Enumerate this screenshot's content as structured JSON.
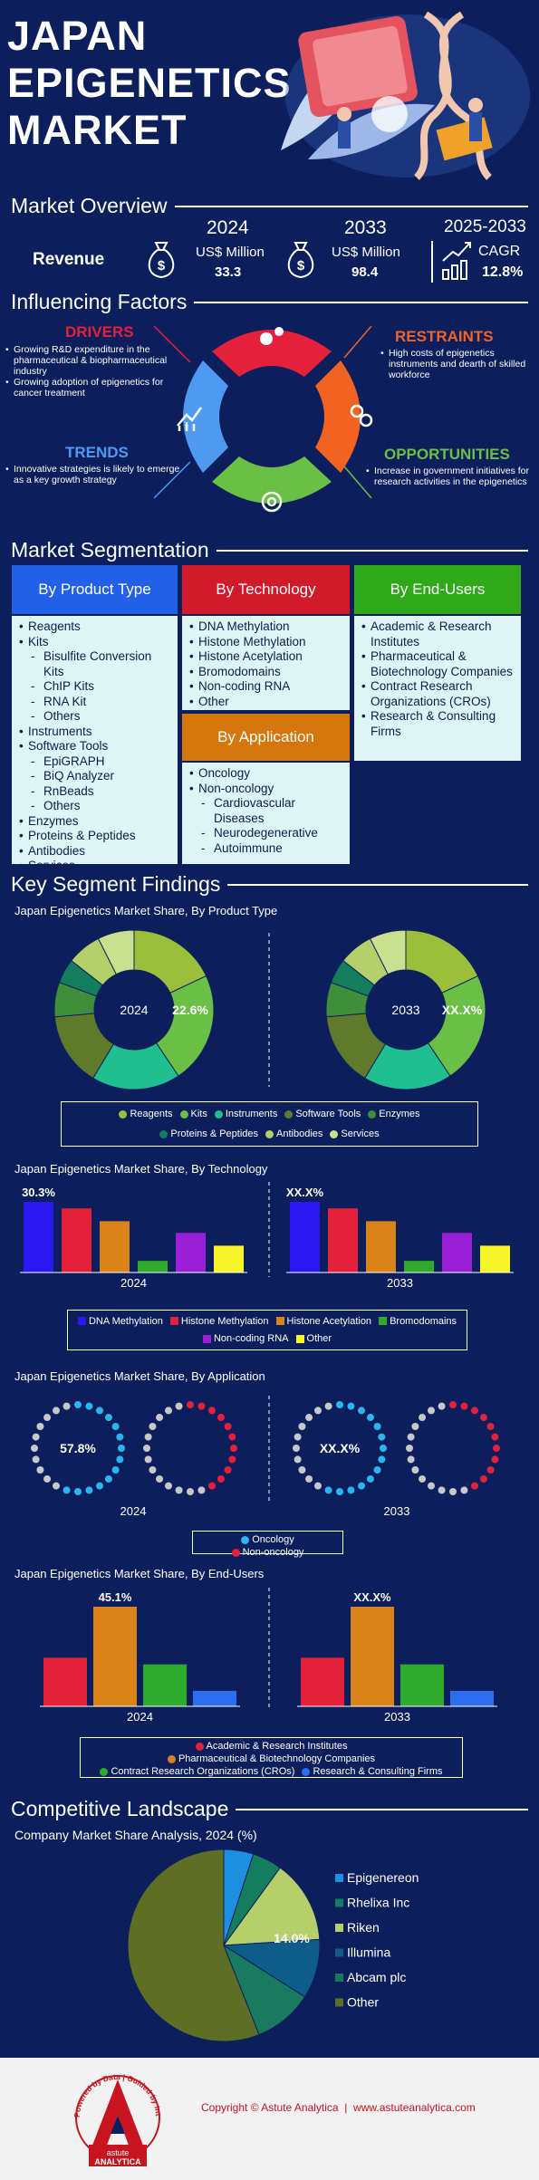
{
  "hero": {
    "title_line1": "JAPAN",
    "title_line2": "EPIGENETICS",
    "title_line3": "MARKET"
  },
  "overview": {
    "title": "Market Overview",
    "revenue_label": "Revenue",
    "y1": "2024",
    "y1_unit": "US$ Million",
    "y1_value": "33.3",
    "y2": "2033",
    "y2_unit": "US$ Million",
    "y2_value": "98.4",
    "y3": "2025-2033",
    "cagr_label": "CAGR",
    "cagr_value": "12.8%"
  },
  "factors": {
    "title": "Influencing Factors",
    "drivers": {
      "label": "DRIVERS",
      "items": [
        "Growing R&D expenditure in the pharmaceutical & biopharmaceutical industry",
        "Growing adoption of epigenetics for cancer treatment"
      ]
    },
    "restraints": {
      "label": "RESTRAINTS",
      "items": [
        "High costs of epigenetics instruments and dearth of skilled workforce"
      ]
    },
    "trends": {
      "label": "TRENDS",
      "items": [
        "Innovative strategies is likely to emerge as a key growth strategy"
      ]
    },
    "opportunities": {
      "label": "OPPORTUNITIES",
      "items": [
        "Increase in government initiatives for research activities in the epigenetics"
      ]
    },
    "colors": {
      "drivers": "#e5203a",
      "restraints": "#f26322",
      "trends": "#4e9af0",
      "opportunities": "#6abf45"
    }
  },
  "segmentation": {
    "title": "Market Segmentation",
    "product": {
      "label": "By Product Type",
      "items": [
        {
          "t": "Reagents",
          "l": 0
        },
        {
          "t": "Kits",
          "l": 0
        },
        {
          "t": "Bisulfite Conversion Kits",
          "l": 1
        },
        {
          "t": "ChIP Kits",
          "l": 1
        },
        {
          "t": "RNA Kit",
          "l": 1
        },
        {
          "t": "Others",
          "l": 1
        },
        {
          "t": "Instruments",
          "l": 0
        },
        {
          "t": "Software Tools",
          "l": 0
        },
        {
          "t": "EpiGRAPH",
          "l": 1
        },
        {
          "t": "BiQ Analyzer",
          "l": 1
        },
        {
          "t": "RnBeads",
          "l": 1
        },
        {
          "t": "Others",
          "l": 1
        },
        {
          "t": "Enzymes",
          "l": 0
        },
        {
          "t": "Proteins & Peptides",
          "l": 0
        },
        {
          "t": "Antibodies",
          "l": 0
        },
        {
          "t": "Services",
          "l": 0
        }
      ]
    },
    "technology": {
      "label": "By Technology",
      "items": [
        {
          "t": "DNA Methylation",
          "l": 0
        },
        {
          "t": "Histone Methylation",
          "l": 0
        },
        {
          "t": "Histone Acetylation",
          "l": 0
        },
        {
          "t": "Bromodomains",
          "l": 0
        },
        {
          "t": "Non-coding RNA",
          "l": 0
        },
        {
          "t": "Other",
          "l": 0
        }
      ]
    },
    "enduser": {
      "label": "By End-Users",
      "items": [
        {
          "t": "Academic & Research Institutes",
          "l": 0
        },
        {
          "t": "Pharmaceutical & Biotechnology Companies",
          "l": 0
        },
        {
          "t": "Contract Research Organizations (CROs)",
          "l": 0
        },
        {
          "t": "Research & Consulting Firms",
          "l": 0
        }
      ]
    },
    "application": {
      "label": "By Application",
      "items": [
        {
          "t": "Oncology",
          "l": 0
        },
        {
          "t": "Non-oncology",
          "l": 0
        },
        {
          "t": "Cardiovascular Diseases",
          "l": 1
        },
        {
          "t": "Neurodegenerative",
          "l": 1
        },
        {
          "t": "Autoimmune",
          "l": 1
        }
      ]
    }
  },
  "findings": {
    "title": "Key Segment Findings",
    "y2024": "2024",
    "y2033": "2033"
  },
  "chart_data": [
    {
      "type": "pie",
      "title": "Japan Epigenetics Market Share, By Product Type",
      "categories": [
        "Reagents",
        "Kits",
        "Instruments",
        "Software Tools",
        "Enzymes",
        "Proteins & Peptides",
        "Antibodies",
        "Services"
      ],
      "colors": [
        "#9bbf3b",
        "#6abf45",
        "#1fbf8f",
        "#5e7a2a",
        "#3f8f3a",
        "#137d5e",
        "#b5cf6b",
        "#c9e08e"
      ],
      "series": [
        {
          "name": "2024",
          "values": [
            18,
            22.6,
            18,
            15,
            7,
            5,
            7,
            7.4
          ],
          "label": "22.6%"
        },
        {
          "name": "2033",
          "values": [
            18,
            22.6,
            18,
            15,
            7,
            5,
            7,
            7.4
          ],
          "label": "XX.X%"
        }
      ]
    },
    {
      "type": "bar",
      "title": "Japan Epigenetics Market Share, By Technology",
      "categories": [
        "DNA Methylation",
        "Histone Methylation",
        "Histone Acetylation",
        "Bromodomains",
        "Non-coding RNA",
        "Other"
      ],
      "colors": [
        "#2b17f0",
        "#e5203a",
        "#d98319",
        "#2eaa2c",
        "#9a1fd6",
        "#f5f52a"
      ],
      "ylim": [
        0,
        30.3
      ],
      "series": [
        {
          "name": "2024",
          "values": [
            30.3,
            27.5,
            22,
            5,
            17,
            11.5
          ],
          "label": "30.3%"
        },
        {
          "name": "2033",
          "values": [
            30.3,
            27.5,
            22,
            5,
            17,
            11.5
          ],
          "label": "XX.X%"
        }
      ]
    },
    {
      "type": "pie",
      "title": "Japan Epigenetics Market Share, By Application",
      "categories": [
        "Oncology",
        "Non-oncology"
      ],
      "colors": [
        "#29b5f0",
        "#e5203a"
      ],
      "series": [
        {
          "name": "2024",
          "values": [
            57.8,
            42.2
          ],
          "label": "57.8%"
        },
        {
          "name": "2033",
          "values": [
            57.8,
            42.2
          ],
          "label": "XX.X%"
        }
      ]
    },
    {
      "type": "bar",
      "title": "Japan Epigenetics Market Share, By End-Users",
      "categories": [
        "Academic & Research Institutes",
        "Pharmaceutical & Biotechnology Companies",
        "Contract Research Organizations (CROs)",
        "Research & Consulting Firms"
      ],
      "colors": [
        "#e5203a",
        "#d98319",
        "#2eaa2c",
        "#2b6ff0"
      ],
      "ylim": [
        0,
        45.1
      ],
      "series": [
        {
          "name": "2024",
          "values": [
            22,
            45.1,
            19,
            7
          ],
          "label": "45.1%"
        },
        {
          "name": "2033",
          "values": [
            22,
            45.1,
            19,
            7
          ],
          "label": "XX.X%"
        }
      ]
    },
    {
      "type": "pie",
      "title": "Company Market Share Analysis, 2024 (%)",
      "categories": [
        "Epigenereon",
        "Rhelixa Inc",
        "Riken",
        "Illumina",
        "Abcam plc",
        "Other"
      ],
      "colors": [
        "#1e8fe0",
        "#137d5e",
        "#b5cf6b",
        "#0d5c8a",
        "#1a7a60",
        "#5e6e24"
      ],
      "values": [
        5,
        5,
        14,
        10,
        10,
        56
      ],
      "label": "14.0%"
    }
  ],
  "competitive": {
    "title": "Competitive Landscape"
  },
  "footer": {
    "copyright": "Copyright © Astute Analytica  |  www.astuteanalytica.com",
    "logo_top": "Powered by Data | Guided by Intelligence",
    "logo_brand": "astute",
    "logo_brand2": "ANALYTICA"
  }
}
